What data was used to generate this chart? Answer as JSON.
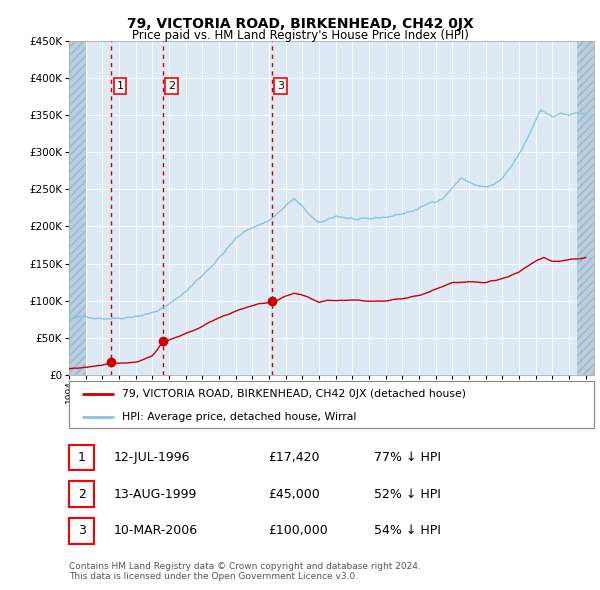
{
  "title": "79, VICTORIA ROAD, BIRKENHEAD, CH42 0JX",
  "subtitle": "Price paid vs. HM Land Registry's House Price Index (HPI)",
  "legend_line1": "79, VICTORIA ROAD, BIRKENHEAD, CH42 0JX (detached house)",
  "legend_line2": "HPI: Average price, detached house, Wirral",
  "transaction1_date": "12-JUL-1996",
  "transaction1_price": 17420,
  "transaction1_hpi": "77% ↓ HPI",
  "transaction2_date": "13-AUG-1999",
  "transaction2_price": 45000,
  "transaction2_hpi": "52% ↓ HPI",
  "transaction3_date": "10-MAR-2006",
  "transaction3_price": 100000,
  "transaction3_hpi": "54% ↓ HPI",
  "footer1": "Contains HM Land Registry data © Crown copyright and database right 2024.",
  "footer2": "This data is licensed under the Open Government Licence v3.0.",
  "hpi_color": "#8ac4e0",
  "price_color": "#cc0000",
  "bg_color": "#ddeaf6",
  "hatch_color": "#b8cfe0",
  "grid_color": "#ffffff",
  "dashed_line_color": "#cc0000",
  "ylim": [
    0,
    450000
  ],
  "yticks": [
    0,
    50000,
    100000,
    150000,
    200000,
    250000,
    300000,
    350000,
    400000,
    450000
  ],
  "transaction1_year": 1996.54,
  "transaction2_year": 1999.62,
  "transaction3_year": 2006.19,
  "xmin": 1994.0,
  "xmax": 2025.5
}
